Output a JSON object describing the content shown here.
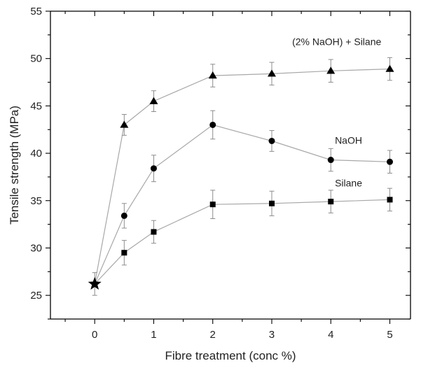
{
  "chart_data": {
    "type": "line",
    "xlabel": "Fibre treatment (conc %)",
    "ylabel": "Tensile strength (MPa)",
    "xlim": [
      -0.75,
      5.35
    ],
    "ylim": [
      22.5,
      55
    ],
    "xticks": [
      0,
      1,
      2,
      3,
      4,
      5
    ],
    "yticks": [
      25,
      30,
      35,
      40,
      45,
      50,
      55
    ],
    "grid": false,
    "legend": "none",
    "untreated_point": {
      "x": 0,
      "y": 26.2,
      "error": 1.2,
      "marker": "star"
    },
    "series": [
      {
        "name": "(2% NaOH) + Silane",
        "marker": "triangle",
        "x": [
          0.5,
          1,
          2,
          3,
          4,
          5
        ],
        "y": [
          43.0,
          45.5,
          48.2,
          48.4,
          48.7,
          48.9
        ],
        "error": [
          1.1,
          1.1,
          1.2,
          1.2,
          1.2,
          1.2
        ]
      },
      {
        "name": "NaOH",
        "marker": "circle",
        "x": [
          0.5,
          1,
          2,
          3,
          4,
          5
        ],
        "y": [
          33.4,
          38.4,
          43.0,
          41.3,
          39.3,
          39.1
        ],
        "error": [
          1.3,
          1.4,
          1.5,
          1.1,
          1.2,
          1.2
        ]
      },
      {
        "name": "Silane",
        "marker": "square",
        "x": [
          0.5,
          1,
          2,
          3,
          4,
          5
        ],
        "y": [
          29.5,
          31.7,
          34.6,
          34.7,
          34.9,
          35.1
        ],
        "error": [
          1.3,
          1.2,
          1.5,
          1.3,
          1.2,
          1.2
        ]
      }
    ],
    "colors": {
      "line": "#a8a8a8",
      "marker": "#000000",
      "errorbar": "#8c8c8c",
      "axis": "#000000"
    }
  }
}
